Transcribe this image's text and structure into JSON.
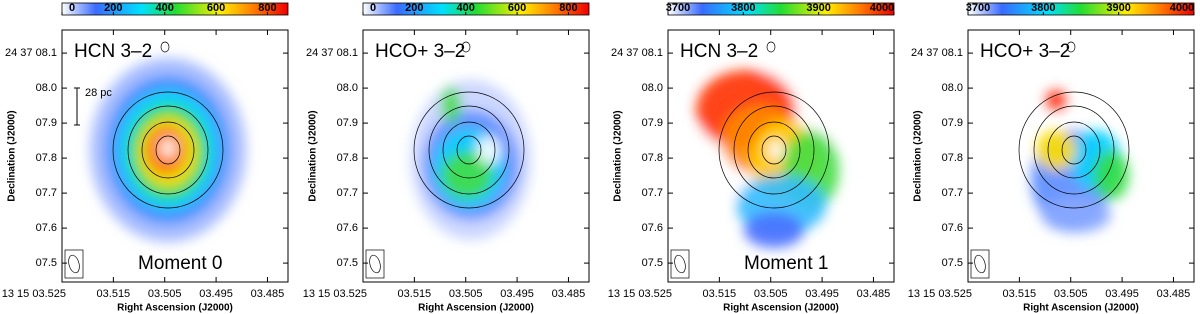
{
  "chart_data": [
    {
      "type": "image",
      "title": "HCN 3–2",
      "annotations": [
        "Moment 0",
        "28 pc"
      ],
      "xlabel": "Right Ascension (J2000)",
      "ylabel": "Declination (J2000)",
      "xlim": [
        3.525,
        3.481
      ],
      "xticks": [
        {
          "value": 3.525,
          "label": "13 15 03.525"
        },
        {
          "value": 3.515,
          "label": "03.515"
        },
        {
          "value": 3.505,
          "label": "03.505"
        },
        {
          "value": 3.495,
          "label": "03.495"
        },
        {
          "value": 3.485,
          "label": "03.485"
        }
      ],
      "ylim": [
        7.446,
        8.166
      ],
      "yticks": [
        {
          "value": 8.1,
          "label": "24 37 08.1"
        },
        {
          "value": 8.0,
          "label": "08.0"
        },
        {
          "value": 7.9,
          "label": "07.9"
        },
        {
          "value": 7.8,
          "label": "07.8"
        },
        {
          "value": 7.7,
          "label": "07.7"
        },
        {
          "value": 7.6,
          "label": "07.6"
        },
        {
          "value": 7.5,
          "label": "07.5"
        }
      ],
      "clim": [
        0,
        880
      ],
      "cticks": [
        0,
        200,
        400,
        600,
        800
      ]
    },
    {
      "type": "image",
      "title": "HCO+ 3–2",
      "annotations": [],
      "xlabel": "Right Ascension (J2000)",
      "ylabel": "Declination (J2000)",
      "xlim": [
        3.525,
        3.481
      ],
      "xticks": [
        {
          "value": 3.525,
          "label": "13 15 03.525"
        },
        {
          "value": 3.515,
          "label": "03.515"
        },
        {
          "value": 3.505,
          "label": "03.505"
        },
        {
          "value": 3.495,
          "label": "03.495"
        },
        {
          "value": 3.485,
          "label": "03.485"
        }
      ],
      "ylim": [
        7.446,
        8.166
      ],
      "yticks": [
        {
          "value": 8.1,
          "label": "24 37 08.1"
        },
        {
          "value": 8.0,
          "label": "08.0"
        },
        {
          "value": 7.9,
          "label": "07.9"
        },
        {
          "value": 7.8,
          "label": "07.8"
        },
        {
          "value": 7.7,
          "label": "07.7"
        },
        {
          "value": 7.6,
          "label": "07.6"
        },
        {
          "value": 7.5,
          "label": "07.5"
        }
      ],
      "clim": [
        0,
        880
      ],
      "cticks": [
        0,
        200,
        400,
        600,
        800
      ]
    },
    {
      "type": "image",
      "title": "HCN 3–2",
      "annotations": [
        "Moment 1"
      ],
      "xlabel": "Right Ascension (J2000)",
      "ylabel": "Declination (J2000)",
      "xlim": [
        3.525,
        3.481
      ],
      "xticks": [
        {
          "value": 3.525,
          "label": "13 15 03.525"
        },
        {
          "value": 3.515,
          "label": "03.515"
        },
        {
          "value": 3.505,
          "label": "03.505"
        },
        {
          "value": 3.495,
          "label": "03.495"
        },
        {
          "value": 3.485,
          "label": "03.485"
        }
      ],
      "ylim": [
        7.446,
        8.166
      ],
      "yticks": [
        {
          "value": 8.1,
          "label": "24 37 08.1"
        },
        {
          "value": 8.0,
          "label": "08.0"
        },
        {
          "value": 7.9,
          "label": "07.9"
        },
        {
          "value": 7.8,
          "label": "07.8"
        },
        {
          "value": 7.7,
          "label": "07.7"
        },
        {
          "value": 7.6,
          "label": "07.6"
        },
        {
          "value": 7.5,
          "label": "07.5"
        }
      ],
      "clim": [
        3700,
        4000
      ],
      "cticks": [
        3700,
        3800,
        3900,
        4000
      ]
    },
    {
      "type": "image",
      "title": "HCO+ 3–2",
      "annotations": [],
      "xlabel": "Right Ascension (J2000)",
      "ylabel": "Declination (J2000)",
      "xlim": [
        3.525,
        3.481
      ],
      "xticks": [
        {
          "value": 3.525,
          "label": "13 15 03.525"
        },
        {
          "value": 3.515,
          "label": "03.515"
        },
        {
          "value": 3.505,
          "label": "03.505"
        },
        {
          "value": 3.495,
          "label": "03.495"
        },
        {
          "value": 3.485,
          "label": "03.485"
        }
      ],
      "ylim": [
        7.446,
        8.166
      ],
      "yticks": [
        {
          "value": 8.1,
          "label": "24 37 08.1"
        },
        {
          "value": 8.0,
          "label": "08.0"
        },
        {
          "value": 7.9,
          "label": "07.9"
        },
        {
          "value": 7.8,
          "label": "07.8"
        },
        {
          "value": 7.7,
          "label": "07.7"
        },
        {
          "value": 7.6,
          "label": "07.6"
        },
        {
          "value": 7.5,
          "label": "07.5"
        }
      ],
      "clim": [
        3700,
        4000
      ],
      "cticks": [
        3700,
        3800,
        3900,
        4000
      ]
    }
  ]
}
